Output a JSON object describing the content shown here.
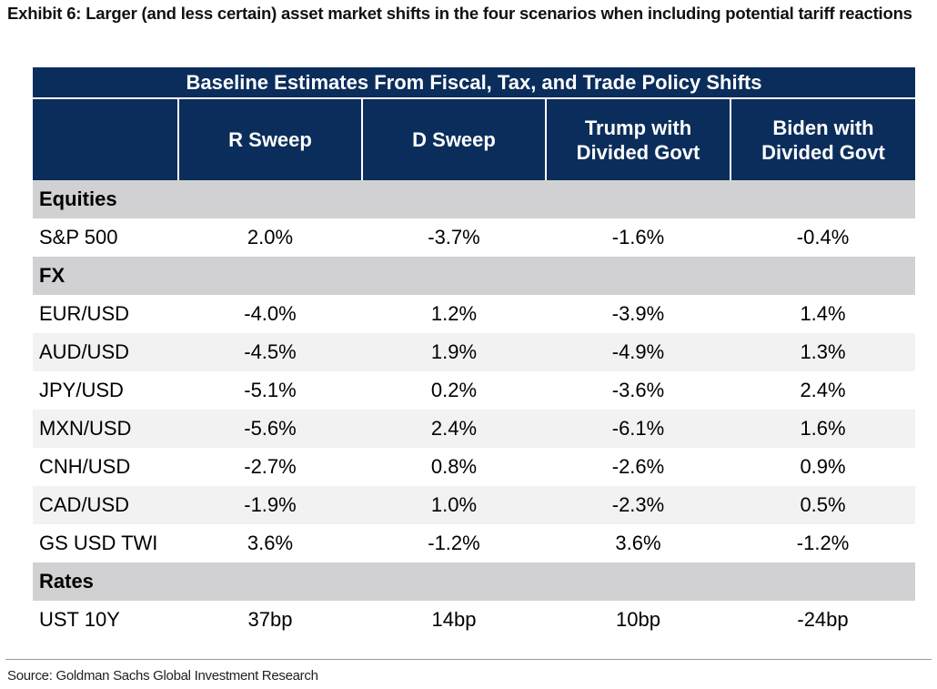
{
  "exhibit": {
    "title": "Exhibit 6: Larger (and less certain) asset market shifts in the four scenarios when including potential tariff reactions",
    "source": "Source: Goldman Sachs Global Investment Research"
  },
  "colors": {
    "header_bg": "#0b2d5b",
    "section_bg": "#d1d1d3",
    "shaded_row_bg": "#f2f2f3"
  },
  "chart_data": {
    "type": "table",
    "title": "Baseline Estimates From Fiscal, Tax, and Trade Policy Shifts",
    "columns": [
      "R Sweep",
      "D Sweep",
      "Trump with Divided Govt",
      "Biden with Divided Govt"
    ],
    "column_lines": [
      [
        "R Sweep"
      ],
      [
        "D Sweep"
      ],
      [
        "Trump with",
        "Divided Govt"
      ],
      [
        "Biden with",
        "Divided Govt"
      ]
    ],
    "sections": [
      {
        "name": "Equities",
        "rows": [
          {
            "label": "S&P 500",
            "values": [
              "2.0%",
              "-3.7%",
              "-1.6%",
              "-0.4%"
            ]
          }
        ]
      },
      {
        "name": "FX",
        "rows": [
          {
            "label": "EUR/USD",
            "values": [
              "-4.0%",
              "1.2%",
              "-3.9%",
              "1.4%"
            ]
          },
          {
            "label": "AUD/USD",
            "values": [
              "-4.5%",
              "1.9%",
              "-4.9%",
              "1.3%"
            ]
          },
          {
            "label": "JPY/USD",
            "values": [
              "-5.1%",
              "0.2%",
              "-3.6%",
              "2.4%"
            ]
          },
          {
            "label": "MXN/USD",
            "values": [
              "-5.6%",
              "2.4%",
              "-6.1%",
              "1.6%"
            ]
          },
          {
            "label": "CNH/USD",
            "values": [
              "-2.7%",
              "0.8%",
              "-2.6%",
              "0.9%"
            ]
          },
          {
            "label": "CAD/USD",
            "values": [
              "-1.9%",
              "1.0%",
              "-2.3%",
              "0.5%"
            ]
          },
          {
            "label": "GS USD TWI",
            "values": [
              "3.6%",
              "-1.2%",
              "3.6%",
              "-1.2%"
            ]
          }
        ]
      },
      {
        "name": "Rates",
        "rows": [
          {
            "label": "UST 10Y",
            "values": [
              "37bp",
              "14bp",
              "10bp",
              "-24bp"
            ]
          }
        ]
      }
    ]
  }
}
